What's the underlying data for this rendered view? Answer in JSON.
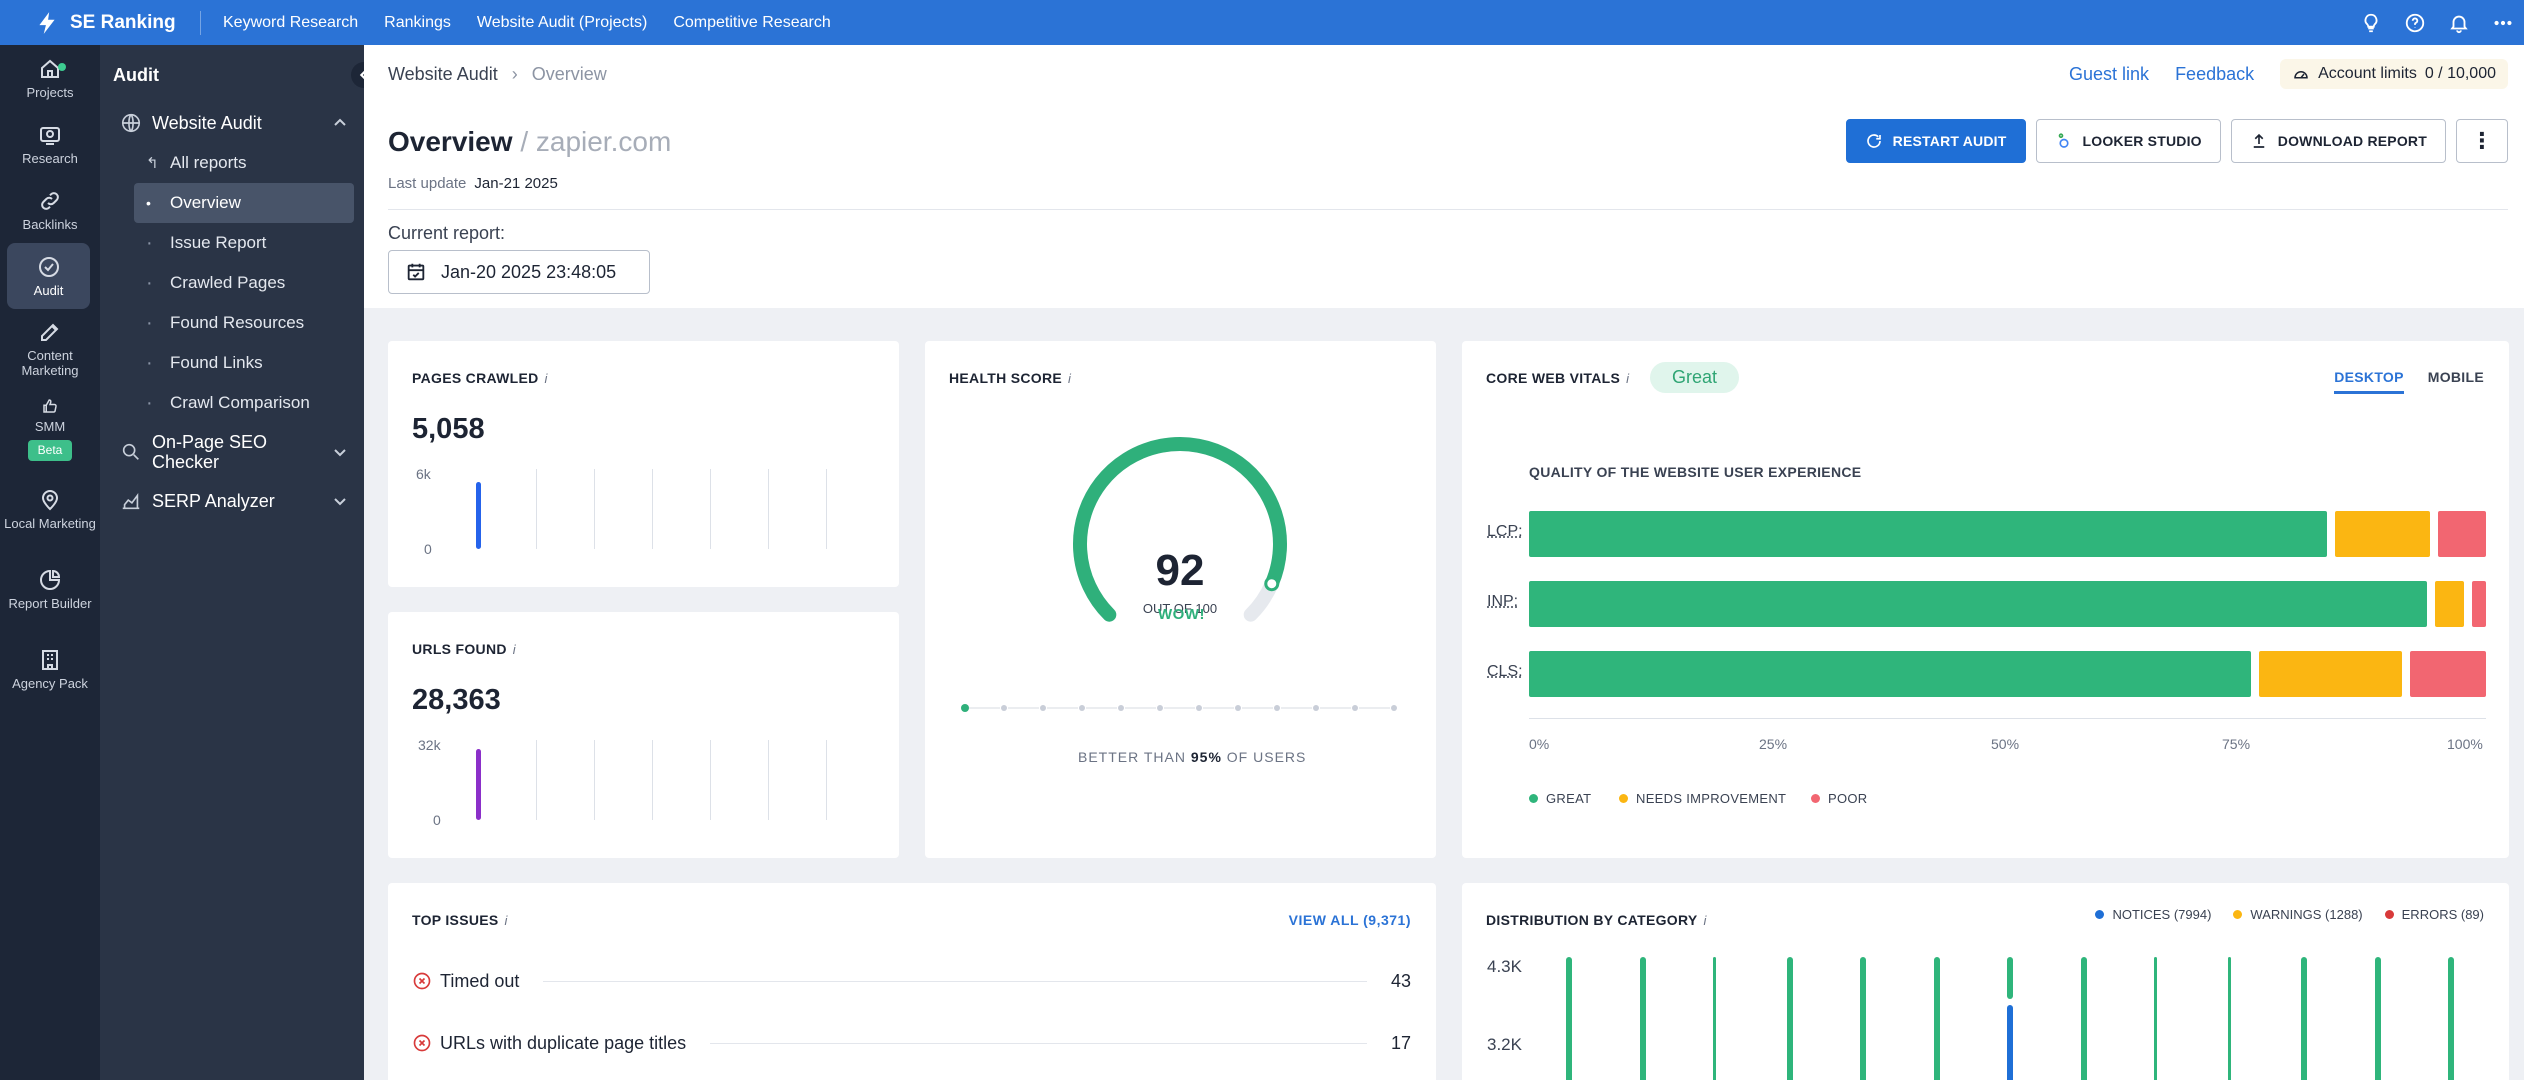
{
  "app": {
    "brand": "SE Ranking"
  },
  "topnav": [
    "Keyword Research",
    "Rankings",
    "Website Audit (Projects)",
    "Competitive Research"
  ],
  "rail": [
    {
      "label": "Projects",
      "icon": "home-icon"
    },
    {
      "label": "Research",
      "icon": "research-icon"
    },
    {
      "label": "Backlinks",
      "icon": "link-icon"
    },
    {
      "label": "Audit",
      "icon": "audit-icon"
    },
    {
      "label": "Content Marketing",
      "icon": "edit-icon"
    },
    {
      "label": "SMM",
      "icon": "thumbs-up-icon"
    },
    {
      "label": "Local Marketing",
      "icon": "location-icon"
    },
    {
      "label": "Report Builder",
      "icon": "pie-chart-icon"
    },
    {
      "label": "Agency Pack",
      "icon": "building-icon"
    }
  ],
  "rail_beta": "Beta",
  "sidebar": {
    "title": "Audit",
    "section_website_audit": "Website Audit",
    "items": [
      "All reports",
      "Overview",
      "Issue Report",
      "Crawled Pages",
      "Found Resources",
      "Found Links",
      "Crawl Comparison"
    ],
    "section_onpage": "On-Page SEO Checker",
    "section_serp": "SERP Analyzer"
  },
  "breadcrumb": {
    "root": "Website Audit",
    "current": "Overview"
  },
  "header": {
    "guest_link": "Guest link",
    "feedback": "Feedback",
    "limits_label": "Account limits",
    "limits_value": "0 / 10,000",
    "title": "Overview",
    "domain": "/ zapier.com",
    "last_update_label": "Last update",
    "last_update_value": "Jan-21 2025",
    "current_report_label": "Current report:",
    "current_report_value": "Jan-20 2025 23:48:05",
    "restart_audit": "RESTART AUDIT",
    "looker_studio": "LOOKER STUDIO",
    "download_report": "DOWNLOAD REPORT"
  },
  "pages_crawled": {
    "title": "PAGES CRAWLED",
    "value": "5,058",
    "y_max": "6k",
    "y_min": "0",
    "bar_fraction": 0.84,
    "color": "#2563eb"
  },
  "urls_found": {
    "title": "URLS FOUND",
    "value": "28,363",
    "y_max": "32k",
    "y_min": "0",
    "bar_fraction": 0.89,
    "color": "#8b2fc9"
  },
  "health": {
    "title": "HEALTH SCORE",
    "score": "92",
    "out_of": "OUT OF 100",
    "verdict": "WOW!",
    "better_prefix": "BETTER THAN",
    "better_value": "95%",
    "better_suffix": "OF USERS",
    "score_value": 92,
    "color": "#2fb07b"
  },
  "cwv": {
    "title": "CORE WEB VITALS",
    "status": "Great",
    "tab_desktop": "DESKTOP",
    "tab_mobile": "MOBILE",
    "subtitle": "QUALITY OF THE WEBSITE USER EXPERIENCE",
    "rows": [
      {
        "label": "LCP:",
        "great": 84,
        "needs": 10,
        "poor": 5
      },
      {
        "label": "INP:",
        "great": 94,
        "needs": 3,
        "poor": 1.5
      },
      {
        "label": "CLS:",
        "great": 76,
        "needs": 15,
        "poor": 8
      }
    ],
    "ticks": [
      "0%",
      "25%",
      "50%",
      "75%",
      "100%"
    ],
    "legend": [
      "GREAT",
      "NEEDS IMPROVEMENT",
      "POOR"
    ],
    "colors": {
      "great": "#2fb57b",
      "needs": "#fbb612",
      "poor": "#f26671"
    }
  },
  "top_issues": {
    "title": "TOP ISSUES",
    "view_all": "VIEW ALL (9,371)",
    "items": [
      {
        "label": "Timed out",
        "count": "43"
      },
      {
        "label": "URLs with duplicate page titles",
        "count": "17"
      }
    ]
  },
  "distribution": {
    "title": "DISTRIBUTION BY CATEGORY",
    "legend": [
      "NOTICES (7994)",
      "WARNINGS (1288)",
      "ERRORS (89)"
    ],
    "legend_colors": [
      "#1f6fd6",
      "#fbb612",
      "#d83a3a"
    ],
    "y_ticks": [
      "4.3K",
      "3.2K"
    ],
    "bars": [
      1,
      1,
      1,
      1,
      1,
      1,
      0.3,
      1,
      1,
      1,
      1,
      1,
      1
    ],
    "bar_blue": [
      0,
      0,
      0,
      0,
      0,
      0,
      1,
      0,
      0,
      0,
      0,
      0,
      0
    ]
  }
}
